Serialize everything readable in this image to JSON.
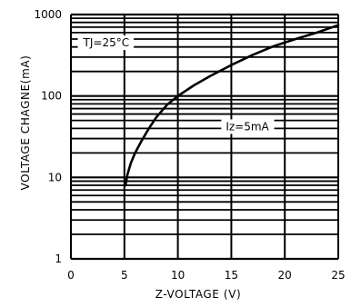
{
  "chart_data": {
    "type": "line",
    "ylabel": "VOLTAGE CHAGNE(mA)",
    "xlabel": "Z-VOLTAGE (V)",
    "x_ticks": [
      "0",
      "5",
      "10",
      "15",
      "20",
      "25"
    ],
    "x_tick_values": [
      0,
      5,
      10,
      15,
      20,
      25
    ],
    "y_ticks": [
      "1",
      "10",
      "100",
      "1000"
    ],
    "y_tick_values": [
      1,
      10,
      100,
      1000
    ],
    "xlim": [
      0,
      25
    ],
    "ylim": [
      1,
      1000
    ],
    "y_scale": "log",
    "grid": true,
    "annotations": [
      {
        "text": "TJ=25°C",
        "x": 3.3,
        "y": 450
      },
      {
        "text": "Iz=5mA",
        "x": 16.5,
        "y": 42
      }
    ],
    "series": [
      {
        "x": [
          5.1,
          5.3,
          5.6,
          6.0,
          6.6,
          7.3,
          8.0,
          9.0,
          10.0,
          11.5,
          13.0,
          15.0,
          17.0,
          19.0,
          21.0,
          23.0,
          25.0
        ],
        "y": [
          8,
          11,
          15,
          20,
          28,
          40,
          55,
          78,
          100,
          135,
          175,
          240,
          320,
          410,
          500,
          600,
          740
        ]
      }
    ]
  }
}
